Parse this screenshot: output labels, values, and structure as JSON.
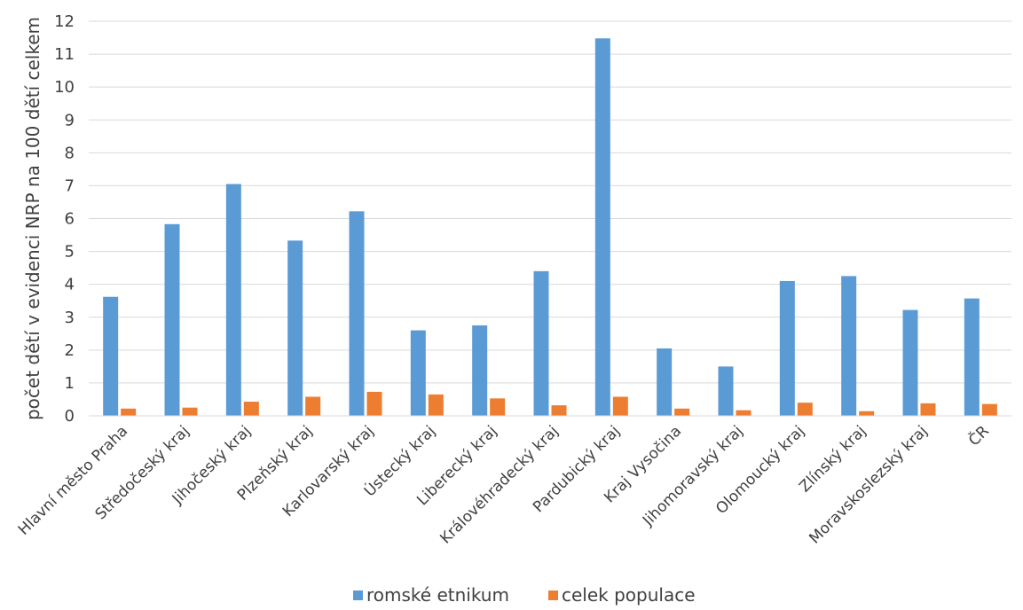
{
  "chart_data": {
    "type": "bar",
    "title": "",
    "ylabel": "počet dětí v evidenci NRP na 100 dětí celkem",
    "xlabel": "",
    "ylim": [
      0,
      12
    ],
    "yticks": [
      0,
      1,
      2,
      3,
      4,
      5,
      6,
      7,
      8,
      9,
      10,
      11,
      12
    ],
    "grid": true,
    "legend_position": "bottom",
    "categories": [
      "Hlavní město Praha",
      "Středočeský kraj",
      "Jihočeský kraj",
      "Plzeňský kraj",
      "Karlovarský kraj",
      "Ústecký kraj",
      "Liberecký kraj",
      "Královéhradecký kraj",
      "Pardubický kraj",
      "Kraj Vysočina",
      "Jihomoravský kraj",
      "Olomoucký kraj",
      "Zlínský kraj",
      "Moravskoslezský kraj",
      "ČR"
    ],
    "series": [
      {
        "name": "romské etnikum",
        "color": "#5B9BD5",
        "values": [
          3.62,
          5.83,
          7.05,
          5.33,
          6.22,
          2.6,
          2.75,
          4.4,
          11.48,
          2.05,
          1.5,
          4.1,
          4.25,
          3.22,
          3.57
        ]
      },
      {
        "name": "celek populace",
        "color": "#ED7D31",
        "values": [
          0.22,
          0.25,
          0.43,
          0.58,
          0.73,
          0.65,
          0.53,
          0.32,
          0.58,
          0.22,
          0.17,
          0.4,
          0.14,
          0.38,
          0.36
        ]
      }
    ]
  }
}
